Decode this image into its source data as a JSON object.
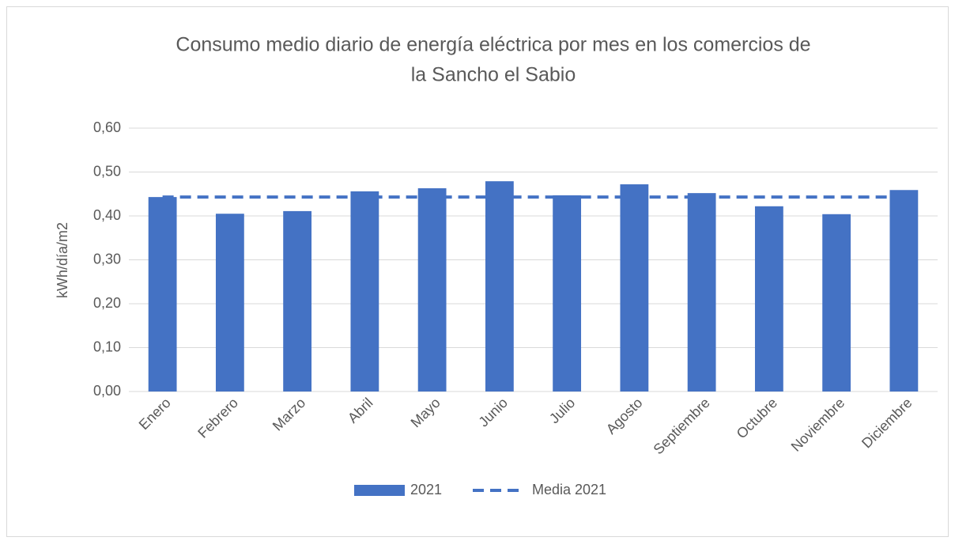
{
  "chart_data": {
    "type": "bar",
    "title": [
      "Consumo medio diario de energía eléctrica por mes en los comercios de",
      "la Sancho el Sabio"
    ],
    "y_label": "kWh/día/m2",
    "categories": [
      "Enero",
      "Febrero",
      "Marzo",
      "Abril",
      "Mayo",
      "Junio",
      "Julio",
      "Agosto",
      "Septiembre",
      "Octubre",
      "Noviembre",
      "Diciembre"
    ],
    "series": [
      {
        "name": "2021",
        "type": "bar",
        "color": "#4472c4",
        "values": [
          0.443,
          0.405,
          0.411,
          0.456,
          0.463,
          0.479,
          0.447,
          0.472,
          0.452,
          0.422,
          0.404,
          0.459
        ]
      },
      {
        "name": "Media 2021",
        "type": "line",
        "dashed": true,
        "color": "#4472c4",
        "values": [
          0.443,
          0.443,
          0.443,
          0.443,
          0.443,
          0.443,
          0.443,
          0.443,
          0.443,
          0.443,
          0.443,
          0.443
        ]
      }
    ],
    "ylim": [
      0,
      0.6
    ],
    "yticks": [
      {
        "value": 0,
        "label": "0,00"
      },
      {
        "value": 0.1,
        "label": "0,10"
      },
      {
        "value": 0.2,
        "label": "0,20"
      },
      {
        "value": 0.3,
        "label": "0,30"
      },
      {
        "value": 0.4,
        "label": "0,40"
      },
      {
        "value": 0.5,
        "label": "0,50"
      },
      {
        "value": 0.6,
        "label": "0,60"
      }
    ],
    "grid": true,
    "legend": "bottom"
  }
}
